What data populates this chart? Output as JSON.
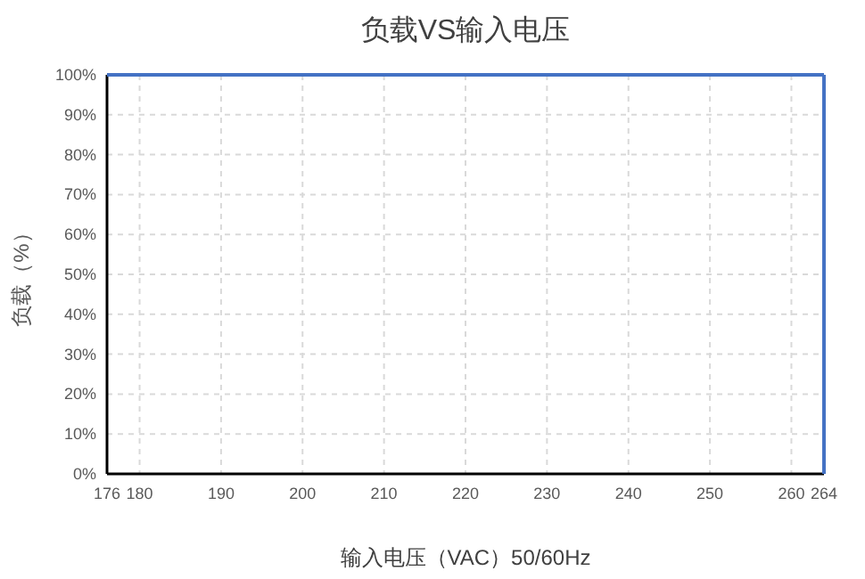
{
  "chart_data": {
    "type": "line",
    "title": "负载VS输入电压",
    "xlabel": "输入电压（VAC）50/60Hz",
    "ylabel": "负载（%）",
    "series": [
      {
        "color": "#4472c4",
        "x": [
          176,
          264
        ],
        "values": [
          100,
          100
        ]
      }
    ],
    "ref_lines": [
      {
        "axis": "x",
        "value": 264,
        "color": "#4472c4",
        "line_style": "solid"
      }
    ],
    "xlim": [
      176,
      264
    ],
    "xticks": [
      176,
      180,
      190,
      200,
      210,
      220,
      230,
      240,
      250,
      260,
      264
    ],
    "ylim": [
      0,
      100
    ],
    "yticks": [
      {
        "value": 0,
        "label": "0%"
      },
      {
        "value": 10,
        "label": "10%"
      },
      {
        "value": 20,
        "label": "20%"
      },
      {
        "value": 30,
        "label": "30%"
      },
      {
        "value": 40,
        "label": "40%"
      },
      {
        "value": 50,
        "label": "50%"
      },
      {
        "value": 60,
        "label": "60%"
      },
      {
        "value": 70,
        "label": "70%"
      },
      {
        "value": 80,
        "label": "80%"
      },
      {
        "value": 90,
        "label": "90%"
      },
      {
        "value": 100,
        "label": "100%"
      }
    ],
    "grid": true,
    "marker": "none",
    "line_style": "solid"
  }
}
